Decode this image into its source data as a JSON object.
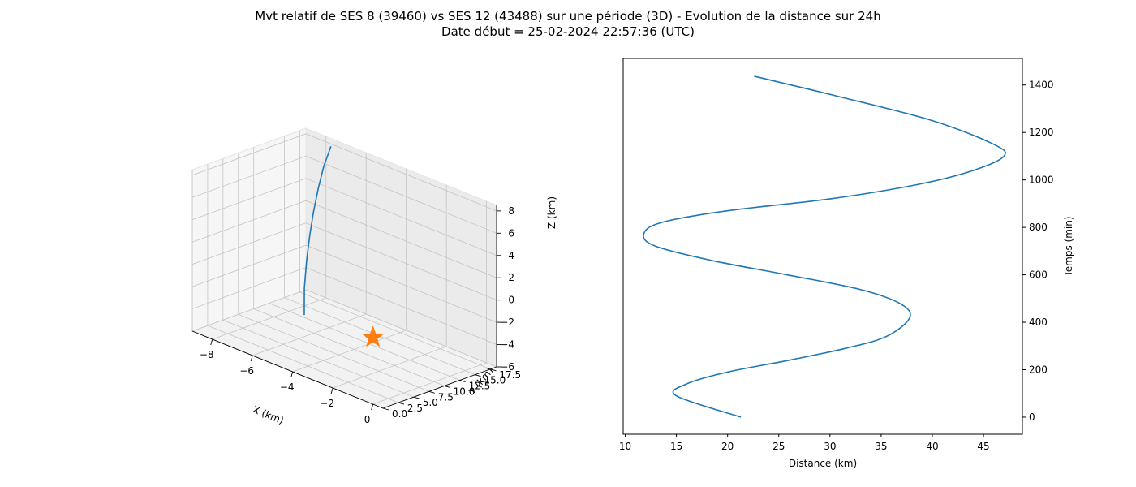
{
  "figure": {
    "title_line1": "Mvt relatif de SES 8 (39460) vs SES 12 (43488) sur une période (3D) - Evolution de la distance sur 24h",
    "title_line2": "Date début = 25-02-2024 22:57:36 (UTC)"
  },
  "chart_data": [
    {
      "type": "line3d",
      "xlabel": "X (km)",
      "ylabel": "Y (km)",
      "zlabel": "Z (km)",
      "xlim": [
        -9,
        0.5
      ],
      "ylim": [
        0,
        18.5
      ],
      "zlim": [
        -6,
        8.5
      ],
      "x_ticks": [
        "−8",
        "−6",
        "−4",
        "−2",
        "0"
      ],
      "x_tick_values": [
        -8,
        -6,
        -4,
        -2,
        0
      ],
      "y_ticks": [
        "0.0",
        "2.5",
        "5.0",
        "7.5",
        "10.0",
        "12.5",
        "15.0",
        "17.5"
      ],
      "y_tick_values": [
        0,
        2.5,
        5,
        7.5,
        10,
        12.5,
        15,
        17.5
      ],
      "z_ticks": [
        "−6",
        "−4",
        "−2",
        "0",
        "2",
        "4",
        "6",
        "8"
      ],
      "z_tick_values": [
        -6,
        -4,
        -2,
        0,
        2,
        4,
        6,
        8
      ],
      "grid": true,
      "line_color": "#1f77b4",
      "marker_color": "#ff7f0e",
      "marker": "star",
      "marker_point": {
        "x": 0,
        "y": 0,
        "z": 0
      },
      "series": [
        {
          "x": [
            -7.4,
            -7.7,
            -7.9,
            -8.05,
            -8.1,
            -8.05,
            -7.9,
            -7.6
          ],
          "y": [
            13.0,
            14.0,
            15.0,
            16.0,
            16.8,
            17.4,
            17.8,
            18.0
          ],
          "z": [
            -6.0,
            -4.0,
            -2.0,
            0.0,
            2.0,
            4.0,
            6.0,
            8.0
          ]
        }
      ]
    },
    {
      "type": "line",
      "xlabel": "Distance (km)",
      "ylabel": "Temps (min)",
      "xlim": [
        9.8,
        48.8
      ],
      "ylim": [
        -72,
        1512
      ],
      "x_ticks": [
        10,
        15,
        20,
        25,
        30,
        35,
        40,
        45
      ],
      "y_ticks": [
        0,
        200,
        400,
        600,
        800,
        1000,
        1200,
        1400
      ],
      "grid": false,
      "yaxis_position": "right",
      "line_color": "#1f77b4",
      "series": [
        {
          "x": [
            21.3,
            15.0,
            16.0,
            20.0,
            26.0,
            31.5,
            35.5,
            37.8,
            36.8,
            32.8,
            25.8,
            18.5,
            13.0,
            11.8,
            13.5,
            20.0,
            30.0,
            38.5,
            44.0,
            47.0,
            46.0,
            40.0,
            31.0,
            22.6
          ],
          "y": [
            0,
            90,
            140,
            190,
            240,
            290,
            340,
            420,
            480,
            540,
            600,
            660,
            720,
            770,
            820,
            870,
            920,
            980,
            1040,
            1100,
            1150,
            1250,
            1350,
            1437
          ]
        }
      ]
    }
  ]
}
